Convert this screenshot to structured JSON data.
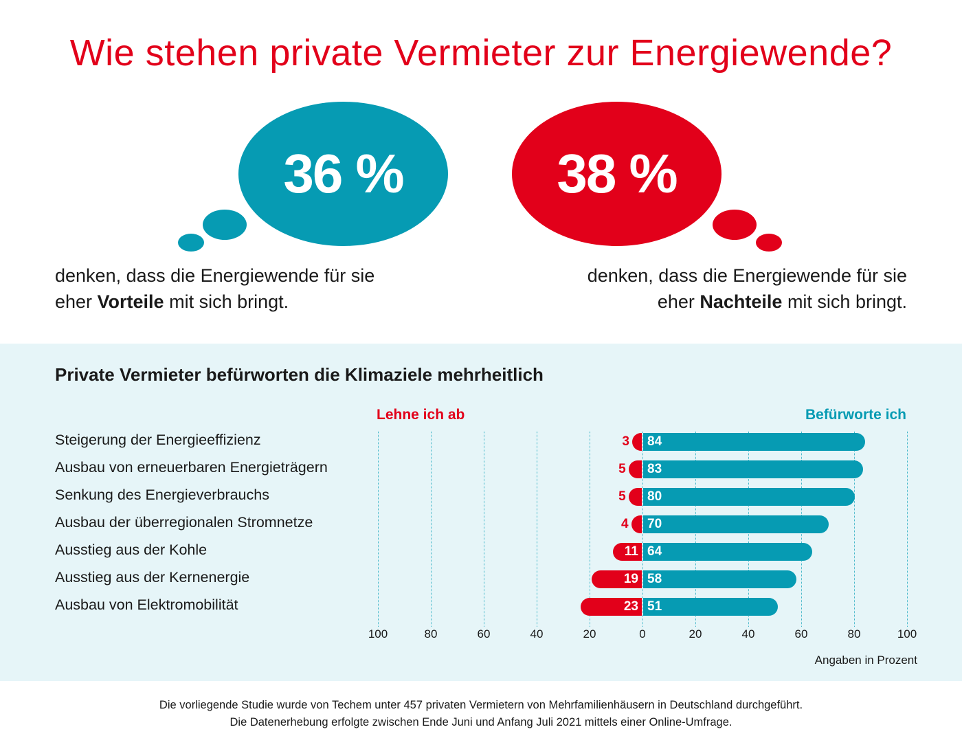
{
  "title": "Wie stehen private Vermieter zur Energiewende?",
  "colors": {
    "red": "#e2001a",
    "teal": "#069bb3",
    "band": "#e6f5f8",
    "text": "#1a1a1a"
  },
  "left_stat": {
    "value": "36 %",
    "line1": "denken, dass die Energiewende für sie",
    "line2_pre": "eher ",
    "line2_bold": "Vorteile",
    "line2_post": " mit sich bringt."
  },
  "right_stat": {
    "value": "38 %",
    "line1": "denken, dass die Energiewende für sie",
    "line2_pre": "eher ",
    "line2_bold": "Nachteile",
    "line2_post": " mit sich bringt."
  },
  "chart_data": {
    "type": "bar",
    "orientation": "horizontal-diverging",
    "title": "Private Vermieter befürworten die Klimaziele mehrheitlich",
    "categories": [
      "Steigerung der Energieeffizienz",
      "Ausbau von erneuerbaren Energieträgern",
      "Senkung des Energieverbrauchs",
      "Ausbau der überregionalen Stromnetze",
      "Ausstieg aus der Kohle",
      "Ausstieg aus der Kernenergie",
      "Ausbau von Elektromobilität"
    ],
    "series": [
      {
        "name": "Lehne ich ab",
        "color": "#e2001a",
        "values": [
          3,
          5,
          5,
          4,
          11,
          19,
          23
        ]
      },
      {
        "name": "Befürworte ich",
        "color": "#069bb3",
        "values": [
          84,
          83,
          80,
          70,
          64,
          58,
          51
        ]
      }
    ],
    "xlim": [
      -100,
      100
    ],
    "x_ticks": [
      "100",
      "80",
      "60",
      "40",
      "20",
      "0",
      "20",
      "40",
      "60",
      "80",
      "100"
    ],
    "x_tick_values": [
      -100,
      -80,
      -60,
      -40,
      -20,
      0,
      20,
      40,
      60,
      80,
      100
    ],
    "grid": true,
    "unit_note": "Angaben in Prozent"
  },
  "footer": {
    "line1": "Die vorliegende Studie wurde von Techem unter 457 privaten Vermietern von Mehrfamilienhäusern in Deutschland durchgeführt.",
    "line2": "Die Datenerhebung erfolgte zwischen Ende Juni und Anfang Juli 2021 mittels einer Online-Umfrage."
  }
}
